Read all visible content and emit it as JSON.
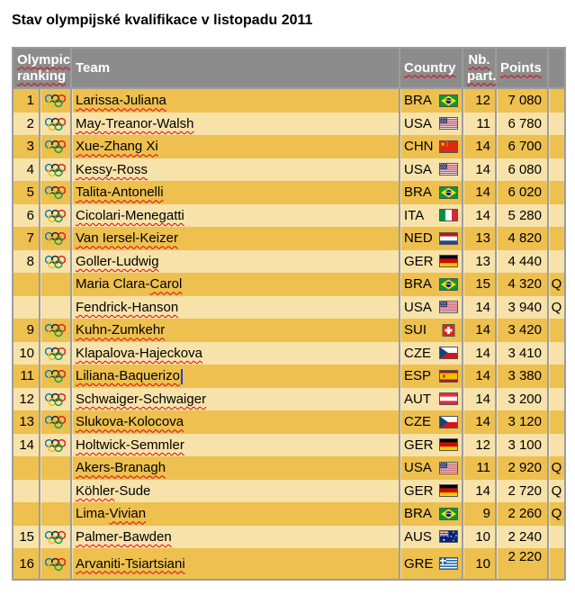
{
  "title": "Stav olympijské kvalifikace v listopadu 2011",
  "colors": {
    "row_dark": "#edc04f",
    "row_light": "#f7e2aa",
    "header_bg": "#8c8c8c",
    "header_text": "#ffffff",
    "grid_border": "#9d9d9d",
    "spellcheck_squiggle": "#e3000f",
    "text_cursor": "#2b3cd8",
    "rings": {
      "blue": "#0b7bc3",
      "black": "#222222",
      "red": "#e0201c",
      "yellow": "#f0c010",
      "green": "#00a651"
    }
  },
  "table": {
    "headers": {
      "olympic_ranking": [
        "Olympic",
        "ranking"
      ],
      "team": "Team",
      "country": "Country",
      "nb_part": [
        "Nb.",
        "part."
      ],
      "points": "Points",
      "qualified": ""
    },
    "rows": [
      {
        "rank": "1",
        "team": [
          [
            "Larissa-Juliana",
            true
          ]
        ],
        "country": "BRA",
        "part": "12",
        "points": "7 080",
        "q": ""
      },
      {
        "rank": "2",
        "team": [
          [
            "May-Treanor-Walsh",
            true
          ]
        ],
        "country": "USA",
        "part": "11",
        "points": "6 780",
        "q": ""
      },
      {
        "rank": "3",
        "team": [
          [
            "Xue-Zhang Xi",
            true
          ]
        ],
        "country": "CHN",
        "part": "14",
        "points": "6 700",
        "q": ""
      },
      {
        "rank": "4",
        "team": [
          [
            "Kessy-Ross",
            true
          ]
        ],
        "country": "USA",
        "part": "14",
        "points": "6 080",
        "q": ""
      },
      {
        "rank": "5",
        "team": [
          [
            "Talita-Antonelli",
            true
          ]
        ],
        "country": "BRA",
        "part": "14",
        "points": "6 020",
        "q": ""
      },
      {
        "rank": "6",
        "team": [
          [
            "Cicolari-Menegatti",
            true
          ]
        ],
        "country": "ITA",
        "part": "14",
        "points": "5 280",
        "q": ""
      },
      {
        "rank": "7",
        "team": [
          [
            "Van Iersel-Keizer",
            true
          ]
        ],
        "country": "NED",
        "part": "13",
        "points": "4 820",
        "q": ""
      },
      {
        "rank": "8",
        "team": [
          [
            "Goller-Ludwig",
            true
          ]
        ],
        "country": "GER",
        "part": "13",
        "points": "4 440",
        "q": ""
      },
      {
        "rank": "",
        "team": [
          [
            "Maria Clara-",
            false
          ],
          [
            "Carol",
            true
          ]
        ],
        "country": "BRA",
        "part": "15",
        "points": "4 320",
        "q": "Q"
      },
      {
        "rank": "",
        "team": [
          [
            "Fendrick-Hanson",
            true
          ]
        ],
        "country": "USA",
        "part": "14",
        "points": "3 940",
        "q": "Q"
      },
      {
        "rank": "9",
        "team": [
          [
            "Kuhn-Zumkehr",
            true
          ]
        ],
        "country": "SUI",
        "part": "14",
        "points": "3 420",
        "q": ""
      },
      {
        "rank": "10",
        "team": [
          [
            "Klapalova-Hajeckova",
            true
          ]
        ],
        "country": "CZE",
        "part": "14",
        "points": "3 410",
        "q": ""
      },
      {
        "rank": "11",
        "team": [
          [
            "Liliana-Baquerizo",
            true
          ]
        ],
        "country": "ESP",
        "part": "14",
        "points": "3 380",
        "q": "",
        "cursor": true
      },
      {
        "rank": "12",
        "team": [
          [
            "Schwaiger-Schwaiger",
            true
          ]
        ],
        "country": "AUT",
        "part": "14",
        "points": "3 200",
        "q": ""
      },
      {
        "rank": "13",
        "team": [
          [
            "Slukova-Kolocova",
            true
          ]
        ],
        "country": "CZE",
        "part": "14",
        "points": "3 120",
        "q": ""
      },
      {
        "rank": "14",
        "team": [
          [
            "Holtwick-Semmler",
            true
          ]
        ],
        "country": "GER",
        "part": "12",
        "points": "3 100",
        "q": ""
      },
      {
        "rank": "",
        "team": [
          [
            "Akers-Branagh",
            true
          ]
        ],
        "country": "USA",
        "part": "11",
        "points": "2 920",
        "q": "Q"
      },
      {
        "rank": "",
        "team": [
          [
            "Köhler",
            true
          ],
          [
            "-Sude",
            false
          ]
        ],
        "country": "GER",
        "part": "14",
        "points": "2 720",
        "q": "Q"
      },
      {
        "rank": "",
        "team": [
          [
            "Lima-",
            false
          ],
          [
            "Vivian",
            true
          ]
        ],
        "country": "BRA",
        "part": "9",
        "points": "2 260",
        "q": "Q"
      },
      {
        "rank": "15",
        "team": [
          [
            "Palmer-Bawden",
            true
          ]
        ],
        "country": "AUS",
        "part": "10",
        "points": "2 240",
        "q": ""
      },
      {
        "rank": "16",
        "team": [
          [
            "Arvaniti-Tsiartsiani",
            true
          ]
        ],
        "country": "GRE",
        "part": "10",
        "points": "2 220",
        "q": "",
        "tall": true,
        "points_top": true
      }
    ]
  }
}
